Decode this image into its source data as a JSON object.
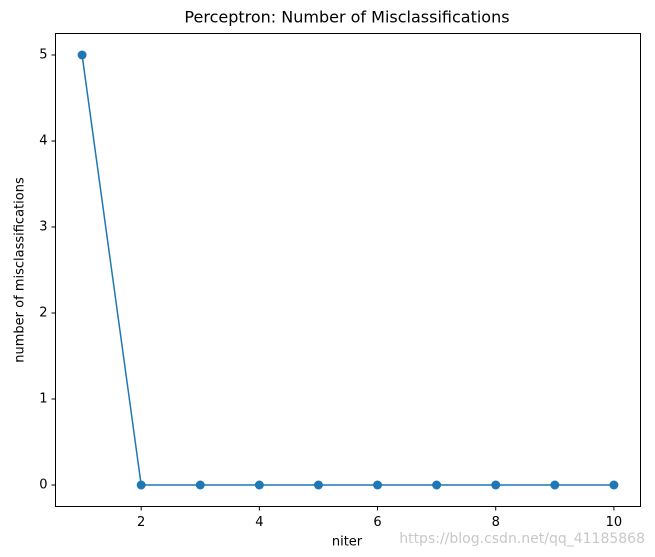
{
  "chart_data": {
    "type": "line",
    "title": "Perceptron: Number of Misclassifications",
    "x_label": "niter",
    "y_label": "number of misclassifications",
    "x": [
      1,
      2,
      3,
      4,
      5,
      6,
      7,
      8,
      9,
      10
    ],
    "series": [
      {
        "color": "#1f77b4",
        "values": [
          5,
          0,
          0,
          0,
          0,
          0,
          0,
          0,
          0,
          0
        ]
      }
    ],
    "xlim": [
      0.55,
      10.45
    ],
    "xticks": [
      2,
      4,
      6,
      8,
      10
    ],
    "ylim": [
      -0.25,
      5.25
    ],
    "yticks": [
      0,
      1,
      2,
      3,
      4,
      5
    ],
    "grid": false,
    "markers": true
  },
  "watermark": "https://blog.csdn.net/qq_41185868"
}
